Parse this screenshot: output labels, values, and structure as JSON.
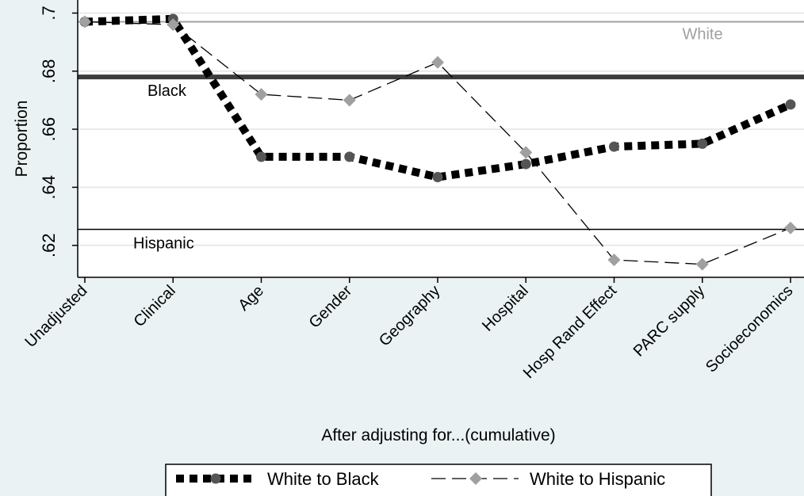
{
  "chart_data": {
    "type": "line",
    "xlabel": "After adjusting for...(cumulative)",
    "ylabel": "Proportion",
    "ylim": [
      0.609,
      0.7045
    ],
    "yticks": [
      0.62,
      0.64,
      0.66,
      0.68,
      0.7
    ],
    "ytick_labels": [
      ".62",
      ".64",
      ".66",
      ".68",
      ".7"
    ],
    "grid": true,
    "categories": [
      "Unadjusted",
      "Clinical",
      "Age",
      "Gender",
      "Geography",
      "Hospital",
      "Hosp Rand Effect",
      "PARC supply",
      "Socioeconomics"
    ],
    "series": [
      {
        "name": "White to Black",
        "style": "dotted-thick",
        "marker": "circle",
        "color": "#000000",
        "marker_color": "#555555",
        "values": [
          0.697,
          0.698,
          0.6505,
          0.6505,
          0.6435,
          0.648,
          0.654,
          0.655,
          0.6685
        ]
      },
      {
        "name": "White to Hispanic",
        "style": "dashed-thin",
        "marker": "diamond",
        "color": "#000000",
        "marker_color": "#a0a0a0",
        "values": [
          0.697,
          0.696,
          0.672,
          0.67,
          0.683,
          0.652,
          0.615,
          0.6135,
          0.626
        ]
      }
    ],
    "reference_lines": [
      {
        "label": "White",
        "value": 0.697,
        "color": "#a0a0a0",
        "width": 2
      },
      {
        "label": "Black",
        "value": 0.678,
        "color": "#3c3c3c",
        "width": 6
      },
      {
        "label": "Hispanic",
        "value": 0.6255,
        "color": "#000000",
        "width": 1.5
      }
    ],
    "legend_position": "bottom"
  }
}
